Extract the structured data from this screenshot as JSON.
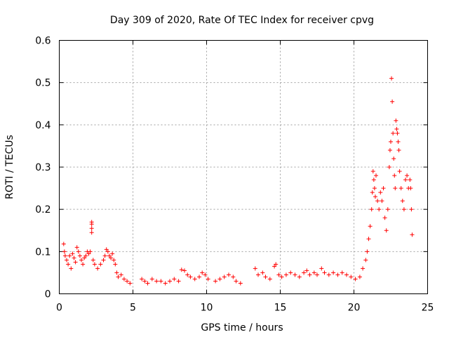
{
  "chart_data": {
    "type": "scatter",
    "title": "Day 309 of 2020, Rate Of TEC Index for receiver cpvg",
    "xlabel": "GPS time / hours",
    "ylabel": "ROTI / TECUs",
    "xlim": [
      0,
      25
    ],
    "ylim": [
      0,
      0.6
    ],
    "x_ticks": [
      0,
      5,
      10,
      15,
      20,
      25
    ],
    "y_ticks": [
      0,
      0.1,
      0.2,
      0.3,
      0.4,
      0.5,
      0.6
    ],
    "grid": true,
    "marker": "+",
    "series_color": "#ff0000",
    "series": [
      {
        "points": [
          [
            0.3,
            0.118
          ],
          [
            0.35,
            0.1
          ],
          [
            0.4,
            0.09
          ],
          [
            0.5,
            0.08
          ],
          [
            0.6,
            0.07
          ],
          [
            0.7,
            0.09
          ],
          [
            0.8,
            0.06
          ],
          [
            0.9,
            0.095
          ],
          [
            1.0,
            0.085
          ],
          [
            1.1,
            0.075
          ],
          [
            1.2,
            0.11
          ],
          [
            1.3,
            0.1
          ],
          [
            1.4,
            0.09
          ],
          [
            1.5,
            0.08
          ],
          [
            1.6,
            0.07
          ],
          [
            1.7,
            0.085
          ],
          [
            1.8,
            0.09
          ],
          [
            1.9,
            0.1
          ],
          [
            2.0,
            0.095
          ],
          [
            2.1,
            0.1
          ],
          [
            2.2,
            0.17
          ],
          [
            2.2,
            0.165
          ],
          [
            2.2,
            0.155
          ],
          [
            2.2,
            0.145
          ],
          [
            2.3,
            0.08
          ],
          [
            2.4,
            0.07
          ],
          [
            2.6,
            0.06
          ],
          [
            2.8,
            0.07
          ],
          [
            3.0,
            0.08
          ],
          [
            3.1,
            0.09
          ],
          [
            3.2,
            0.105
          ],
          [
            3.3,
            0.1
          ],
          [
            3.4,
            0.09
          ],
          [
            3.5,
            0.085
          ],
          [
            3.6,
            0.095
          ],
          [
            3.7,
            0.08
          ],
          [
            3.8,
            0.07
          ],
          [
            3.9,
            0.05
          ],
          [
            4.0,
            0.04
          ],
          [
            4.2,
            0.045
          ],
          [
            4.4,
            0.035
          ],
          [
            4.6,
            0.03
          ],
          [
            4.8,
            0.025
          ],
          [
            5.6,
            0.035
          ],
          [
            5.8,
            0.03
          ],
          [
            6.0,
            0.025
          ],
          [
            6.3,
            0.035
          ],
          [
            6.6,
            0.03
          ],
          [
            6.9,
            0.03
          ],
          [
            7.2,
            0.025
          ],
          [
            7.5,
            0.03
          ],
          [
            7.8,
            0.035
          ],
          [
            8.1,
            0.03
          ],
          [
            8.3,
            0.057
          ],
          [
            8.5,
            0.055
          ],
          [
            8.7,
            0.045
          ],
          [
            8.9,
            0.04
          ],
          [
            9.2,
            0.035
          ],
          [
            9.5,
            0.04
          ],
          [
            9.7,
            0.05
          ],
          [
            9.9,
            0.045
          ],
          [
            10.1,
            0.035
          ],
          [
            10.6,
            0.03
          ],
          [
            10.9,
            0.035
          ],
          [
            11.2,
            0.04
          ],
          [
            11.5,
            0.045
          ],
          [
            11.8,
            0.04
          ],
          [
            12.0,
            0.03
          ],
          [
            12.3,
            0.025
          ],
          [
            13.3,
            0.06
          ],
          [
            13.5,
            0.045
          ],
          [
            13.8,
            0.05
          ],
          [
            14.0,
            0.04
          ],
          [
            14.3,
            0.035
          ],
          [
            14.6,
            0.065
          ],
          [
            14.7,
            0.07
          ],
          [
            14.9,
            0.045
          ],
          [
            15.1,
            0.04
          ],
          [
            15.4,
            0.045
          ],
          [
            15.7,
            0.05
          ],
          [
            16.0,
            0.045
          ],
          [
            16.3,
            0.04
          ],
          [
            16.6,
            0.05
          ],
          [
            16.8,
            0.055
          ],
          [
            17.0,
            0.045
          ],
          [
            17.3,
            0.05
          ],
          [
            17.5,
            0.045
          ],
          [
            17.8,
            0.06
          ],
          [
            18.0,
            0.05
          ],
          [
            18.3,
            0.045
          ],
          [
            18.6,
            0.05
          ],
          [
            18.9,
            0.045
          ],
          [
            19.2,
            0.05
          ],
          [
            19.5,
            0.045
          ],
          [
            19.8,
            0.04
          ],
          [
            20.1,
            0.035
          ],
          [
            20.4,
            0.04
          ],
          [
            20.6,
            0.06
          ],
          [
            20.8,
            0.08
          ],
          [
            20.9,
            0.1
          ],
          [
            21.0,
            0.13
          ],
          [
            21.1,
            0.16
          ],
          [
            21.2,
            0.2
          ],
          [
            21.25,
            0.24
          ],
          [
            21.3,
            0.29
          ],
          [
            21.35,
            0.27
          ],
          [
            21.4,
            0.25
          ],
          [
            21.45,
            0.23
          ],
          [
            21.5,
            0.28
          ],
          [
            21.6,
            0.22
          ],
          [
            21.7,
            0.2
          ],
          [
            21.8,
            0.24
          ],
          [
            21.9,
            0.22
          ],
          [
            22.0,
            0.25
          ],
          [
            22.1,
            0.18
          ],
          [
            22.2,
            0.15
          ],
          [
            22.3,
            0.2
          ],
          [
            22.4,
            0.3
          ],
          [
            22.45,
            0.34
          ],
          [
            22.5,
            0.36
          ],
          [
            22.55,
            0.51
          ],
          [
            22.6,
            0.455
          ],
          [
            22.65,
            0.38
          ],
          [
            22.7,
            0.32
          ],
          [
            22.75,
            0.28
          ],
          [
            22.8,
            0.25
          ],
          [
            22.85,
            0.41
          ],
          [
            22.9,
            0.39
          ],
          [
            22.95,
            0.38
          ],
          [
            23.0,
            0.36
          ],
          [
            23.05,
            0.34
          ],
          [
            23.1,
            0.29
          ],
          [
            23.2,
            0.25
          ],
          [
            23.3,
            0.22
          ],
          [
            23.4,
            0.2
          ],
          [
            23.5,
            0.27
          ],
          [
            23.6,
            0.28
          ],
          [
            23.7,
            0.25
          ],
          [
            23.8,
            0.27
          ],
          [
            23.85,
            0.25
          ],
          [
            23.9,
            0.2
          ],
          [
            23.95,
            0.14
          ]
        ]
      }
    ]
  }
}
